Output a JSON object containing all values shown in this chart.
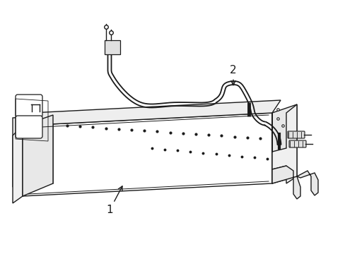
{
  "background_color": "#ffffff",
  "line_color": "#1a1a1a",
  "label1": "1",
  "label2": "2",
  "figsize": [
    4.89,
    3.6
  ],
  "dpi": 100,
  "xlim": [
    0,
    489
  ],
  "ylim": [
    0,
    360
  ]
}
